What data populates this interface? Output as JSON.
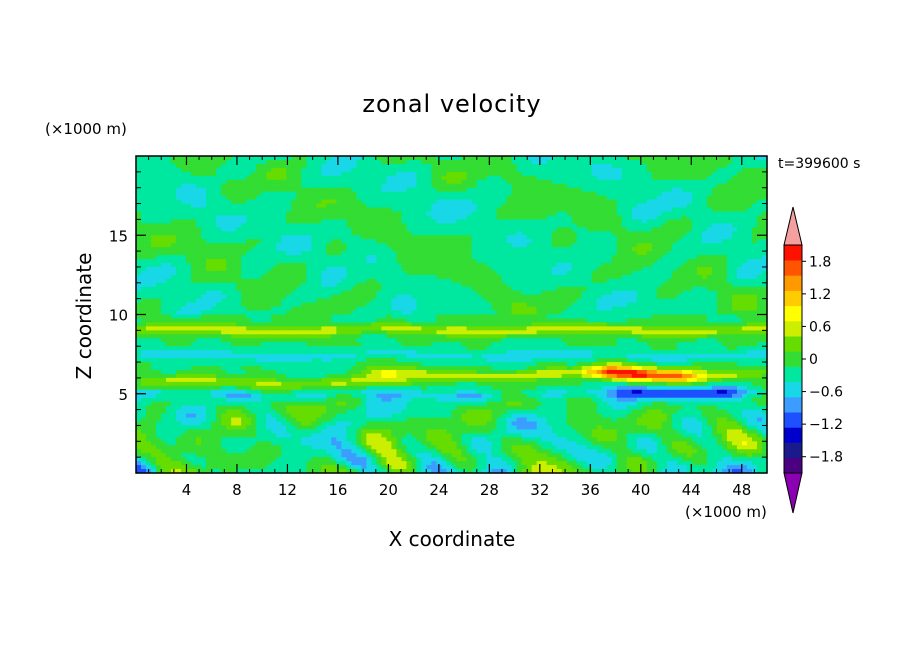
{
  "chart_data": {
    "type": "heatmap",
    "title": "zonal velocity",
    "xlabel": "X coordinate",
    "ylabel": "Z coordinate",
    "x_unit": "(×1000 m)",
    "y_unit": "(×1000 m)",
    "time_label": "t=399600 s",
    "xlim": [
      0,
      50
    ],
    "ylim": [
      0,
      20
    ],
    "x_ticks": [
      4,
      8,
      12,
      16,
      20,
      24,
      28,
      32,
      36,
      40,
      44,
      48
    ],
    "y_ticks": [
      5,
      10,
      15
    ],
    "x_tick_labels": [
      "4",
      "8",
      "12",
      "16",
      "20",
      "24",
      "28",
      "32",
      "36",
      "40",
      "44",
      "48"
    ],
    "y_tick_labels": [
      "5",
      "10",
      "15"
    ],
    "colorbar": {
      "min": -2.1,
      "max": 2.1,
      "step": 0.3,
      "tick_values": [
        1.8,
        1.2,
        0.6,
        0,
        -0.6,
        -1.2,
        -1.8
      ],
      "tick_labels": [
        "1.8",
        "1.2",
        "0.6",
        "0",
        "−0.6",
        "−1.2",
        "−1.8"
      ],
      "colors": [
        "#4b0082",
        "#1a1a8c",
        "#0000cd",
        "#1e50ff",
        "#3c9cff",
        "#18d8e8",
        "#00e8a0",
        "#33dd33",
        "#66dd00",
        "#ccee00",
        "#ffff00",
        "#ffcc00",
        "#ff9900",
        "#ff5500",
        "#ff1100"
      ],
      "under_color": "#8c00b4",
      "over_color": "#f4a0a0"
    },
    "features": [
      {
        "z": 9.0,
        "amplitude": 0.7,
        "x_from": 0,
        "x_to": 50
      },
      {
        "z": 7.4,
        "amplitude": -0.4,
        "x_from": 0,
        "x_to": 50
      },
      {
        "z": 6.2,
        "amplitude": 0.7,
        "x_from": 18,
        "x_to": 50
      },
      {
        "z": 5.7,
        "amplitude": 0.6,
        "x_from": 0,
        "x_to": 22
      },
      {
        "z": 6.3,
        "amplitude": 1.5,
        "x_from": 36,
        "x_to": 44
      },
      {
        "z": 5.2,
        "amplitude": -0.9,
        "x_from": 38,
        "x_to": 48
      },
      {
        "z": 4.9,
        "amplitude": -0.4,
        "x_from": 0,
        "x_to": 50
      }
    ]
  }
}
